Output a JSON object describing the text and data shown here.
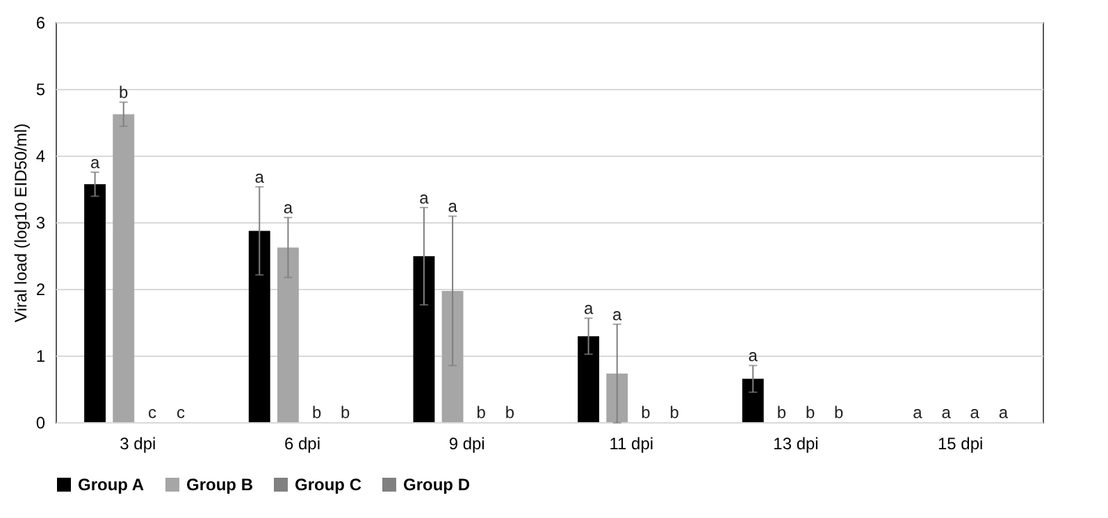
{
  "chart_data": {
    "type": "bar",
    "ylabel": "Viral load (log10 EID50/ml)",
    "categories": [
      "3 dpi",
      "6 dpi",
      "9 dpi",
      "11 dpi",
      "13 dpi",
      "15 dpi"
    ],
    "ylim": [
      0,
      6
    ],
    "yticks": [
      0,
      1,
      2,
      3,
      4,
      5,
      6
    ],
    "grid": "y",
    "legend": "bottom",
    "series": [
      {
        "name": "Group A",
        "color": "#000000",
        "values": [
          3.57,
          2.87,
          2.49,
          1.29,
          0.65,
          0
        ],
        "errors": [
          0.18,
          0.66,
          0.73,
          0.27,
          0.2,
          null
        ]
      },
      {
        "name": "Group B",
        "color": "#a6a6a6",
        "values": [
          4.62,
          2.62,
          1.97,
          0.73,
          0,
          0
        ],
        "errors": [
          0.18,
          0.45,
          1.12,
          0.74,
          null,
          null
        ]
      },
      {
        "name": "Group C",
        "color": "#808080",
        "values": [
          0,
          0,
          0,
          0,
          0,
          0
        ]
      },
      {
        "name": "Group D",
        "color": "#808080",
        "values": [
          0,
          0,
          0,
          0,
          0,
          0
        ]
      }
    ],
    "annotations": [
      "a",
      "b",
      "c",
      "c",
      "a",
      "a",
      "b",
      "b",
      "a",
      "a",
      "b",
      "b",
      "a",
      "a",
      "b",
      "b",
      "a",
      "b",
      "b",
      "b",
      "a",
      "a",
      "a",
      "a"
    ]
  }
}
